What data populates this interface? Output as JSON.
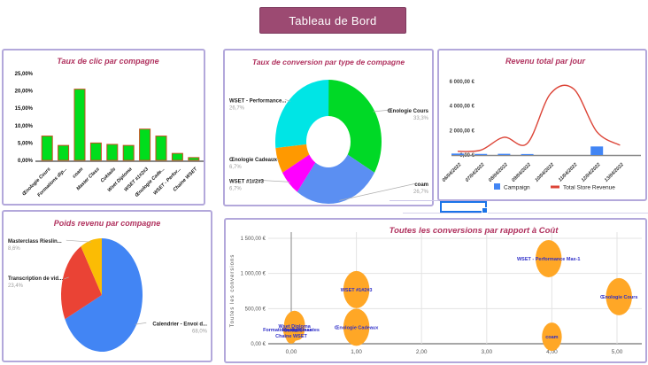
{
  "banner": {
    "title": "Tableau de Bord",
    "bg_color": "#9C4A72",
    "text_color": "#FFFFFF"
  },
  "theme": {
    "panel_border": "#B3A8DB",
    "chart_title_color": "#B0315E",
    "grid_color": "#E3E3E3",
    "axis_color": "#8A8A8A",
    "selection_color": "#1A73E8"
  },
  "chart_data": [
    {
      "id": "clicks_bar",
      "type": "bar",
      "title": "Taux de clic par compagne",
      "categories": [
        "Œnologie Cours",
        "Formations dip...",
        "coam",
        "Master Class",
        "Coktails",
        "Wset Diploma",
        "WSET #1#2#3",
        "Œnologie Cade...",
        "WSET - Perfor...",
        "Chaine WSET"
      ],
      "values": [
        7,
        4.3,
        20.5,
        5,
        4.6,
        4.3,
        9,
        7,
        2,
        0.8
      ],
      "yticks": [
        "25,00%",
        "20,00%",
        "15,00%",
        "10,00%",
        "5,00%",
        "0,00%"
      ],
      "ylim": [
        0,
        25
      ],
      "bar_fill": "#00DD1C",
      "bar_stroke": "#C4511F"
    },
    {
      "id": "conversion_donut",
      "type": "pie",
      "donut": true,
      "title": "Taux de conversion par type de compagne",
      "slices": [
        {
          "label": "Œnologie Cours",
          "pct_label": "33,3%",
          "value": 33.3,
          "color": "#00D926",
          "side": "right"
        },
        {
          "label": "coam",
          "pct_label": "26,7%",
          "value": 26.7,
          "color": "#5B8FF2",
          "side": "right"
        },
        {
          "label": "WSET #1#2#3",
          "pct_label": "6,7%",
          "value": 6.7,
          "color": "#FF00FF",
          "side": "left"
        },
        {
          "label": "Œnologie Cadeaux",
          "pct_label": "6,7%",
          "value": 6.7,
          "color": "#FF9900",
          "side": "left"
        },
        {
          "label": "WSET - Performance...",
          "pct_label": "26,7%",
          "value": 26.7,
          "color": "#00E5E5",
          "side": "left"
        }
      ]
    },
    {
      "id": "revenue_by_day",
      "type": "line",
      "title": "Revenu total par jour",
      "x": [
        "06/04/2022",
        "07/04/2022",
        "08/04/2022",
        "09/04/2022",
        "10/04/2022",
        "11/04/2022",
        "12/04/2022",
        "13/04/2022"
      ],
      "series": [
        {
          "name": "Campaign",
          "render": "bar",
          "color": "#4285F4",
          "values": [
            120,
            90,
            100,
            80,
            0,
            0,
            700,
            0
          ]
        },
        {
          "name": "Total Store Revenue",
          "render": "line",
          "color": "#DC4437",
          "values": [
            300,
            400,
            1450,
            950,
            5000,
            5400,
            1900,
            800
          ]
        }
      ],
      "yticks": [
        "6 000,00 €",
        "4 000,00 €",
        "2 000,00 €",
        "0,00 €"
      ],
      "ylim": [
        0,
        6000
      ],
      "legend": [
        "Campaign",
        "Total Store Revenue"
      ]
    },
    {
      "id": "revenue_pie",
      "type": "pie",
      "donut": false,
      "title": "Poids revenu par compagne",
      "slices": [
        {
          "label": "Calendrier - Envoi d...",
          "pct_label": "68,0%",
          "value": 68.0,
          "color": "#4285F4",
          "side": "right"
        },
        {
          "label": "Transcription de vid...",
          "pct_label": "23,4%",
          "value": 23.4,
          "color": "#EA4335",
          "side": "left"
        },
        {
          "label": "Masterclass Rieslin...",
          "pct_label": "8,6%",
          "value": 8.6,
          "color": "#FBBC04",
          "side": "left"
        }
      ]
    },
    {
      "id": "conversions_vs_cost",
      "type": "scatter",
      "title": "Toutes les conversions par rapport à Coût",
      "ylabel": "Toutes les conversions",
      "xticks": [
        "0,00",
        "1,00",
        "2,00",
        "3,00",
        "4,00",
        "5,00"
      ],
      "yticks": [
        "1 500,00 €",
        "1 000,00 €",
        "500,00 €",
        "0,00 €"
      ],
      "xlim": [
        -0.45,
        5.4
      ],
      "ylim": [
        0,
        1560
      ],
      "bubble_color": "#FFA726",
      "label_color": "#2F2FC8",
      "points": [
        {
          "label": "Wset Diploma",
          "x": 0.05,
          "y": 255,
          "r": 17
        },
        {
          "label": "Formations diplomantes",
          "x": 0.0,
          "y": 200,
          "r": 13
        },
        {
          "label": "Master Class",
          "x": 0.09,
          "y": 200,
          "r": 12
        },
        {
          "label": "Coktails",
          "x": 0.03,
          "y": 198,
          "r": 11
        },
        {
          "label": "Chaine WSET",
          "x": 0.0,
          "y": 115,
          "r": 9
        },
        {
          "label": "Œnologie Cadeaux",
          "x": 1.0,
          "y": 235,
          "r": 21
        },
        {
          "label": "WSET #1#2#3",
          "x": 1.0,
          "y": 770,
          "r": 21
        },
        {
          "label": "coam",
          "x": 4.0,
          "y": 100,
          "r": 16
        },
        {
          "label": "WSET - Performance Max-1",
          "x": 3.95,
          "y": 1210,
          "r": 21
        },
        {
          "label": "Œnologie Cours",
          "x": 5.03,
          "y": 670,
          "r": 21
        }
      ]
    }
  ]
}
